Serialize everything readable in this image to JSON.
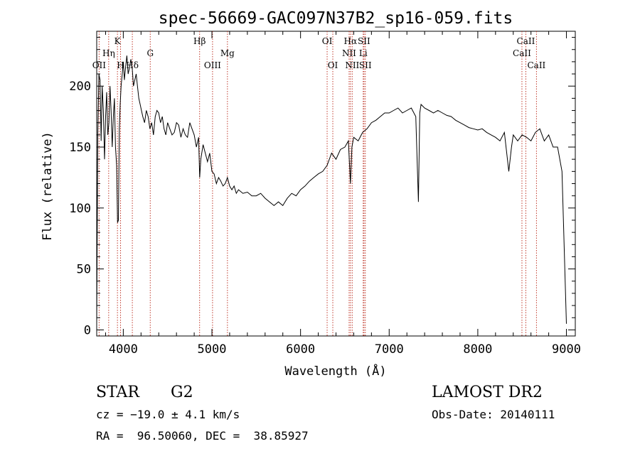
{
  "chart_data": {
    "type": "line",
    "title": "spec-56669-GAC097N37B2_sp16-059.fits",
    "xlabel": "Wavelength (Å)",
    "ylabel": "Flux (relative)",
    "xlim": [
      3700,
      9100
    ],
    "ylim": [
      -5,
      245
    ],
    "xticks": [
      4000,
      5000,
      6000,
      7000,
      8000,
      9000
    ],
    "yticks": [
      0,
      50,
      100,
      150,
      200
    ],
    "grid": false,
    "line_color": "#000000",
    "marker_color": "#c0392b",
    "series": [
      {
        "x": [
          3700,
          3712,
          3725,
          3738,
          3750,
          3762,
          3775,
          3788,
          3800,
          3812,
          3825,
          3838,
          3850,
          3862,
          3875,
          3888,
          3900,
          3912,
          3925,
          3935,
          3945,
          3955,
          3965,
          3975,
          3988,
          4000,
          4012,
          4025,
          4040,
          4055,
          4070,
          4085,
          4100,
          4115,
          4130,
          4145,
          4160,
          4175,
          4190,
          4205,
          4220,
          4240,
          4260,
          4280,
          4300,
          4320,
          4340,
          4360,
          4380,
          4400,
          4420,
          4440,
          4460,
          4480,
          4500,
          4525,
          4550,
          4575,
          4600,
          4625,
          4650,
          4675,
          4700,
          4725,
          4750,
          4775,
          4800,
          4825,
          4850,
          4862,
          4875,
          4900,
          4925,
          4950,
          4975,
          5000,
          5025,
          5050,
          5075,
          5100,
          5125,
          5150,
          5175,
          5200,
          5225,
          5250,
          5275,
          5300,
          5350,
          5400,
          5450,
          5500,
          5550,
          5600,
          5650,
          5700,
          5750,
          5800,
          5850,
          5900,
          5950,
          6000,
          6050,
          6100,
          6150,
          6200,
          6250,
          6300,
          6350,
          6400,
          6450,
          6500,
          6540,
          6563,
          6580,
          6600,
          6650,
          6700,
          6750,
          6800,
          6850,
          6900,
          6950,
          7000,
          7050,
          7100,
          7150,
          7200,
          7250,
          7300,
          7330,
          7345,
          7360,
          7400,
          7450,
          7500,
          7550,
          7600,
          7650,
          7700,
          7750,
          7800,
          7850,
          7900,
          7950,
          8000,
          8050,
          8100,
          8150,
          8200,
          8250,
          8300,
          8350,
          8380,
          8400,
          8450,
          8500,
          8550,
          8600,
          8650,
          8700,
          8750,
          8800,
          8850,
          8900,
          8950,
          9000
        ],
        "y": [
          5,
          160,
          210,
          205,
          155,
          200,
          180,
          140,
          175,
          195,
          160,
          170,
          200,
          180,
          150,
          175,
          190,
          150,
          135,
          88,
          90,
          165,
          185,
          200,
          210,
          220,
          205,
          215,
          225,
          210,
          215,
          222,
          215,
          200,
          205,
          210,
          200,
          190,
          185,
          180,
          175,
          170,
          180,
          175,
          165,
          170,
          160,
          175,
          180,
          178,
          170,
          175,
          165,
          160,
          170,
          165,
          160,
          162,
          170,
          168,
          158,
          165,
          160,
          158,
          170,
          165,
          160,
          150,
          158,
          125,
          140,
          152,
          145,
          138,
          145,
          130,
          128,
          120,
          125,
          122,
          118,
          120,
          125,
          118,
          115,
          118,
          112,
          115,
          112,
          113,
          110,
          110,
          112,
          108,
          105,
          102,
          105,
          102,
          108,
          112,
          110,
          115,
          118,
          122,
          125,
          128,
          130,
          135,
          145,
          140,
          148,
          150,
          155,
          120,
          150,
          158,
          155,
          162,
          165,
          170,
          172,
          175,
          178,
          178,
          180,
          182,
          178,
          180,
          182,
          175,
          105,
          178,
          185,
          182,
          180,
          178,
          180,
          178,
          176,
          175,
          172,
          170,
          168,
          166,
          165,
          164,
          165,
          162,
          160,
          158,
          155,
          162,
          130,
          150,
          160,
          155,
          160,
          158,
          155,
          162,
          165,
          155,
          160,
          150,
          150,
          130,
          5
        ]
      }
    ],
    "lines": [
      {
        "x": 3727,
        "label": "OII",
        "tier": 3
      },
      {
        "x": 3835,
        "label": "Hη",
        "tier": 2
      },
      {
        "x": 3934,
        "label": "K",
        "tier": 1
      },
      {
        "x": 3969,
        "label": "H",
        "tier": 3
      },
      {
        "x": 4102,
        "label": "Hδ",
        "tier": 3
      },
      {
        "x": 4304,
        "label": "G",
        "tier": 2
      },
      {
        "x": 4861,
        "label": "Hβ",
        "tier": 1
      },
      {
        "x": 5007,
        "label": "OIII",
        "tier": 3
      },
      {
        "x": 5175,
        "label": "Mg",
        "tier": 2
      },
      {
        "x": 6300,
        "label": "OI",
        "tier": 1
      },
      {
        "x": 6364,
        "label": "OI",
        "tier": 3
      },
      {
        "x": 6548,
        "label": "NII",
        "tier": 2
      },
      {
        "x": 6563,
        "label": "Hα",
        "tier": 1
      },
      {
        "x": 6583,
        "label": "NII",
        "tier": 3
      },
      {
        "x": 6707,
        "label": "Li",
        "tier": 2
      },
      {
        "x": 6716,
        "label": "SII",
        "tier": 1
      },
      {
        "x": 6731,
        "label": "SII",
        "tier": 3
      },
      {
        "x": 8498,
        "label": "CaII",
        "tier": 2
      },
      {
        "x": 8542,
        "label": "CaII",
        "tier": 1
      },
      {
        "x": 8662,
        "label": "CaII",
        "tier": 3
      }
    ]
  },
  "info": {
    "class": "STAR",
    "subclass": "G2",
    "survey": "LAMOST DR2",
    "cz": "cz = −19.0 ± 4.1 km/s",
    "obs_date": "Obs-Date: 20140111",
    "coords": "RA =  96.50060, DEC =  38.85927"
  }
}
